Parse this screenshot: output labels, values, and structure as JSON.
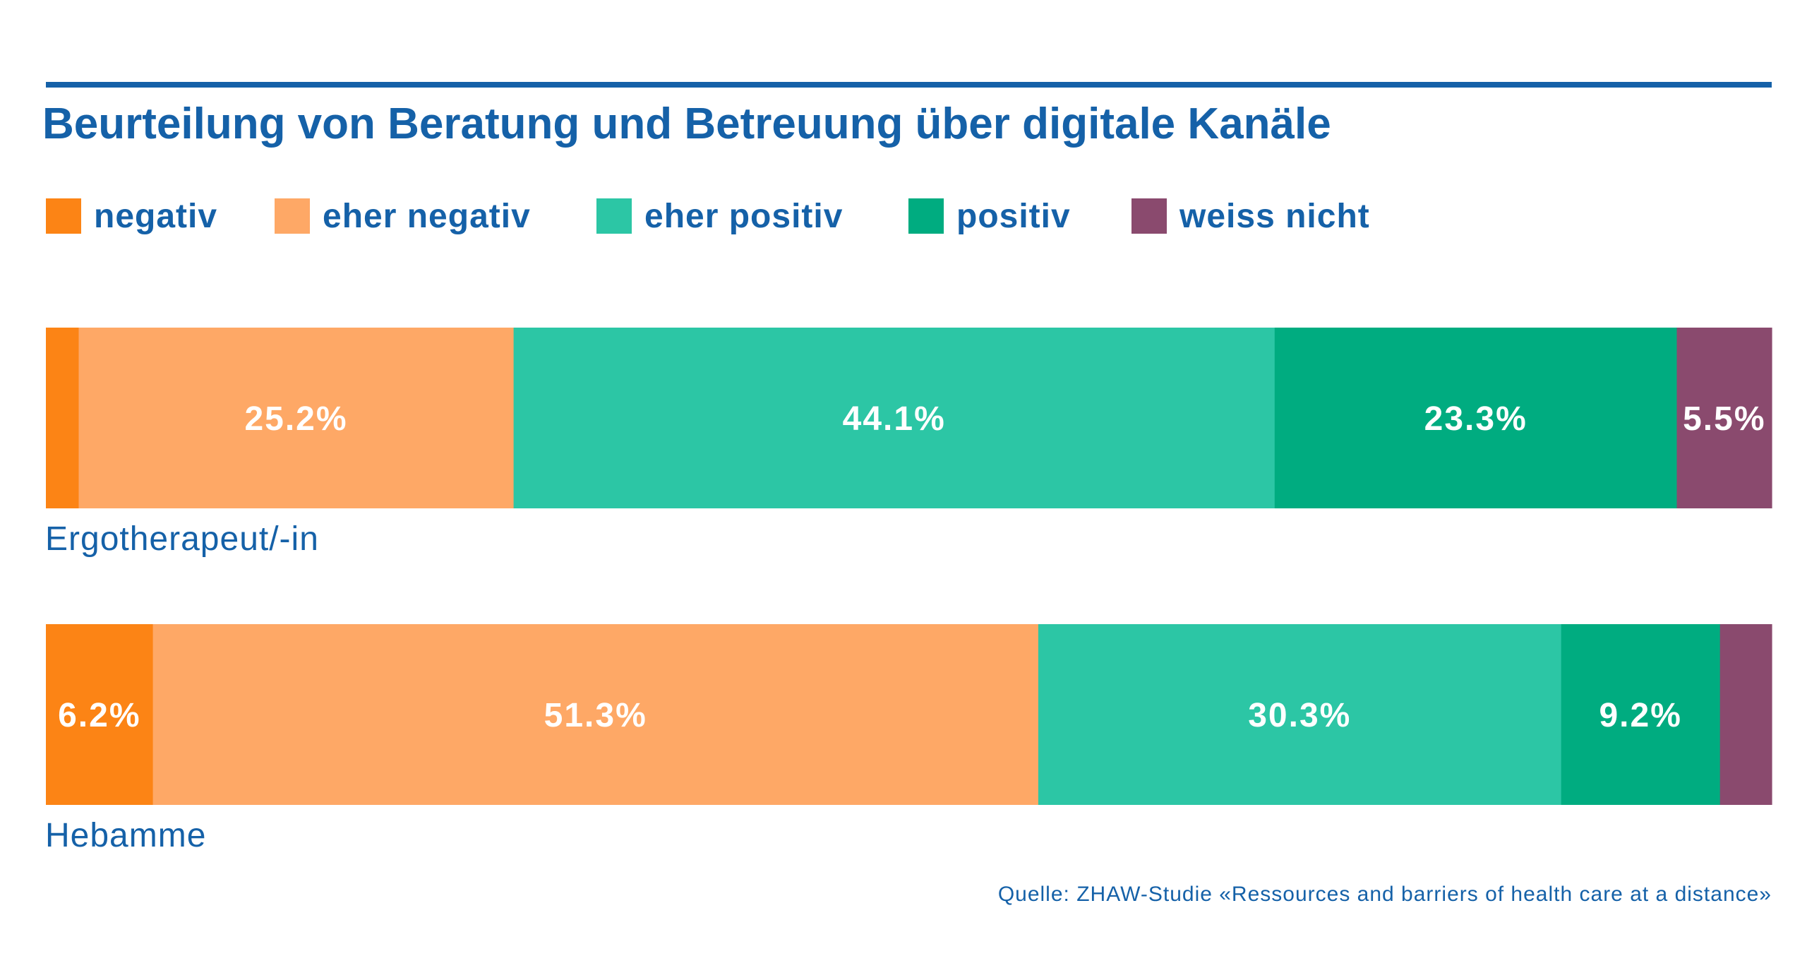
{
  "title": "Beurteilung von Beratung und Betreuung über digitale Kanäle",
  "source": "Quelle: ZHAW-Studie «Ressources and barriers of health care at a distance»",
  "colors": {
    "accent": "#1561a8",
    "negativ": "#fc8415",
    "eher_negativ": "#fea866",
    "eher_positiv": "#2cc6a5",
    "positiv": "#00ac80",
    "weiss_nicht": "#8a4a6e",
    "label_text": "#ffffff"
  },
  "chart_data": {
    "type": "bar",
    "orientation": "horizontal",
    "stacked": true,
    "normalized": true,
    "title": "Beurteilung von Beratung und Betreuung über digitale Kanäle",
    "categories": [
      "Ergotherapeut/-in",
      "Hebamme"
    ],
    "legend_position": "top-left",
    "grid": false,
    "xlim": [
      0,
      100
    ],
    "series": [
      {
        "name": "negativ",
        "color": "#fc8415",
        "values": [
          1.9,
          6.2
        ],
        "labels": [
          "",
          "6.2%"
        ]
      },
      {
        "name": "eher negativ",
        "color": "#fea866",
        "values": [
          25.2,
          51.3
        ],
        "labels": [
          "25.2%",
          "51.3%"
        ]
      },
      {
        "name": "eher positiv",
        "color": "#2cc6a5",
        "values": [
          44.1,
          30.3
        ],
        "labels": [
          "44.1%",
          "30.3%"
        ]
      },
      {
        "name": "positiv",
        "color": "#00ac80",
        "values": [
          23.3,
          9.2
        ],
        "labels": [
          "23.3%",
          "9.2%"
        ]
      },
      {
        "name": "weiss nicht",
        "color": "#8a4a6e",
        "values": [
          5.5,
          3.0
        ],
        "labels": [
          "5.5%",
          ""
        ]
      }
    ]
  }
}
